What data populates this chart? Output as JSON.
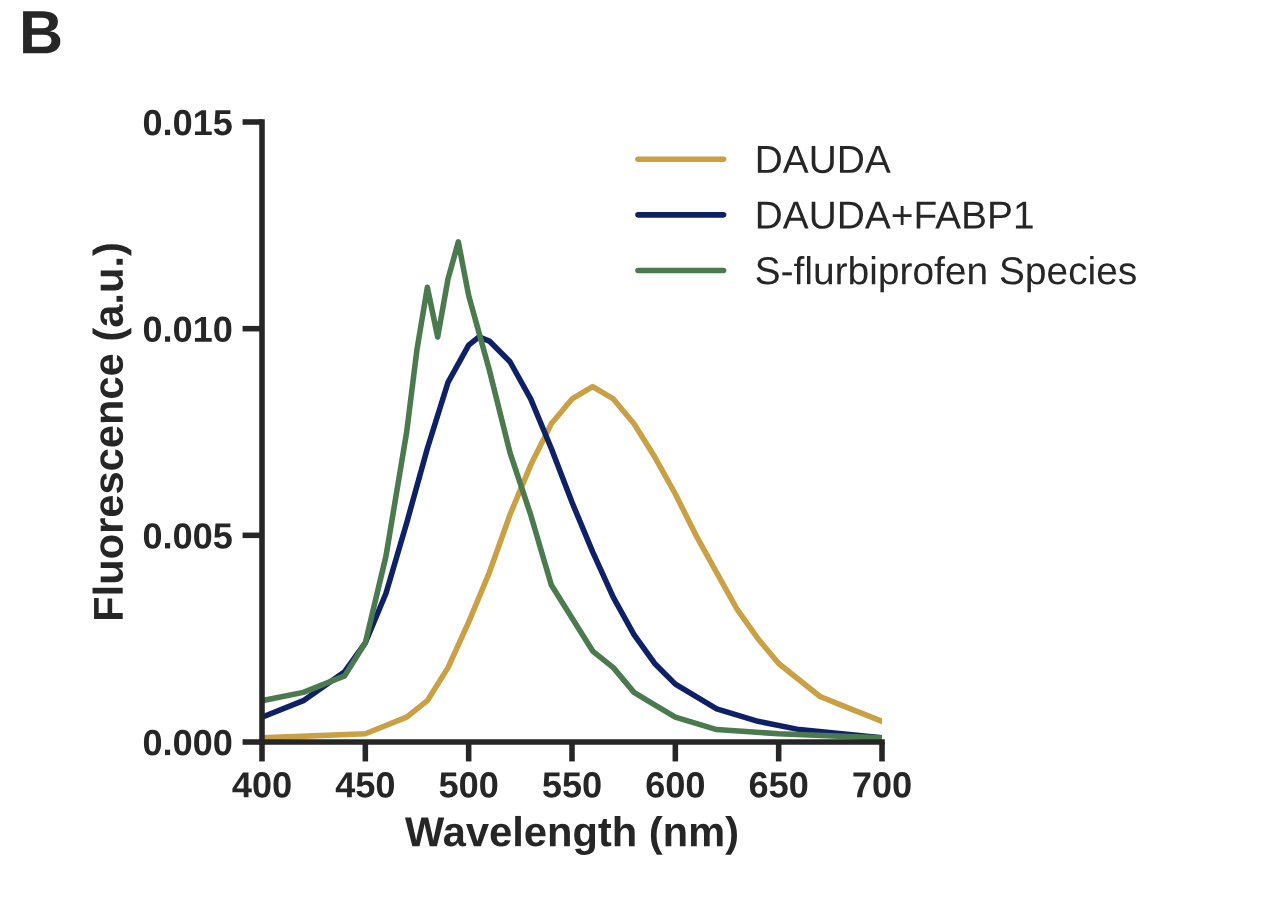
{
  "chart_data": {
    "type": "line",
    "title": "B",
    "xlabel": "Wavelength (nm)",
    "ylabel": "Fluorescence (a.u.)",
    "xlim": [
      400,
      700
    ],
    "xticks": [
      400,
      450,
      500,
      550,
      600,
      650,
      700
    ],
    "ylim": [
      0,
      0.015
    ],
    "yticks": [
      {
        "value": 0,
        "label": "0.000"
      },
      {
        "value": 0.005,
        "label": "0.005"
      },
      {
        "value": 0.01,
        "label": "0.010"
      },
      {
        "value": 0.015,
        "label": "0.015"
      }
    ],
    "grid": false,
    "legend": "top right",
    "marker": "none",
    "line_style": "solid",
    "series": [
      {
        "name": "DAUDA",
        "color": "#c9a043",
        "x": [
          400,
          450,
          470,
          480,
          490,
          500,
          510,
          520,
          530,
          540,
          550,
          560,
          570,
          580,
          590,
          600,
          610,
          620,
          630,
          640,
          650,
          660,
          670,
          680,
          690,
          700
        ],
        "values": [
          0.0001,
          0.0002,
          0.0006,
          0.001,
          0.0018,
          0.0029,
          0.0041,
          0.0055,
          0.0067,
          0.0077,
          0.0083,
          0.0086,
          0.0083,
          0.0077,
          0.0069,
          0.006,
          0.005,
          0.0041,
          0.0032,
          0.0025,
          0.0019,
          0.0015,
          0.0011,
          0.0009,
          0.0007,
          0.0005
        ]
      },
      {
        "name": "DAUDA+FABP1",
        "color": "#0f2166",
        "x": [
          400,
          420,
          440,
          450,
          460,
          470,
          480,
          490,
          500,
          505,
          510,
          520,
          530,
          540,
          550,
          560,
          570,
          580,
          590,
          600,
          620,
          640,
          660,
          700
        ],
        "values": [
          0.0006,
          0.001,
          0.0017,
          0.0024,
          0.0036,
          0.0053,
          0.0071,
          0.0087,
          0.0096,
          0.0098,
          0.0097,
          0.0092,
          0.0083,
          0.0071,
          0.0058,
          0.0046,
          0.0035,
          0.0026,
          0.0019,
          0.0014,
          0.0008,
          0.0005,
          0.0003,
          0.0001
        ]
      },
      {
        "name": "S-flurbiprofen Species",
        "color": "#4a7a4e",
        "x": [
          400,
          420,
          440,
          450,
          460,
          470,
          475,
          480,
          485,
          490,
          495,
          500,
          510,
          520,
          530,
          540,
          550,
          560,
          570,
          580,
          590,
          600,
          620,
          650,
          700
        ],
        "values": [
          0.001,
          0.0012,
          0.0016,
          0.0024,
          0.0045,
          0.0075,
          0.0095,
          0.011,
          0.0098,
          0.0112,
          0.0121,
          0.0108,
          0.009,
          0.007,
          0.0055,
          0.0038,
          0.003,
          0.0022,
          0.0018,
          0.0012,
          0.0009,
          0.0006,
          0.0003,
          0.0002,
          0.0001
        ]
      }
    ]
  }
}
